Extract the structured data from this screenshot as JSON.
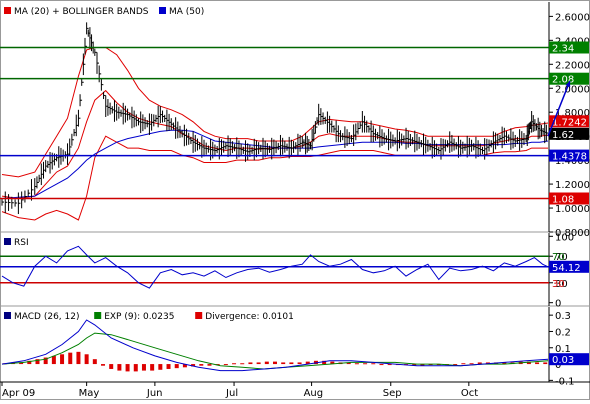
{
  "chart_data": [
    {
      "type": "line",
      "panel": "price",
      "legend": [
        {
          "label": "MA (20) + BOLLINGER BANDS",
          "color": "#e00000"
        },
        {
          "label": "MA (50)",
          "color": "#0000cc"
        }
      ],
      "y_ticks": [
        "2.6000",
        "2.4000",
        "2.2000",
        "2.0000",
        "1.8000",
        "1.6000",
        "1.4000",
        "1.2000",
        "1.0000",
        "0.8000"
      ],
      "y_tick_values": [
        2.6,
        2.4,
        2.2,
        2.0,
        1.8,
        1.6,
        1.4,
        1.2,
        1.0,
        0.8
      ],
      "ylim": [
        0.8,
        2.72
      ],
      "x_months": [
        {
          "label": "Apr 09",
          "t": 0.0
        },
        {
          "label": "May",
          "t": 0.155
        },
        {
          "label": "Jun",
          "t": 0.28
        },
        {
          "label": "Jul",
          "t": 0.425
        },
        {
          "label": "Aug",
          "t": 0.567
        },
        {
          "label": "Sep",
          "t": 0.712
        },
        {
          "label": "Oct",
          "t": 0.855
        }
      ],
      "levels": [
        {
          "label": "2.34",
          "value": 2.34,
          "color": "#006600",
          "badge": "#008000"
        },
        {
          "label": "2.08",
          "value": 2.08,
          "color": "#006600",
          "badge": "#008000"
        },
        {
          "label": "1.4378",
          "value": 1.4378,
          "color": "#0000cc",
          "badge": "#0000cc"
        },
        {
          "label": "1.08",
          "value": 1.08,
          "color": "#cc0000",
          "badge": "#dd0000"
        }
      ],
      "value_badges": [
        {
          "label": "1.7242",
          "value": 1.7242,
          "color": "#dd0000"
        },
        {
          "label": "1.62",
          "value": 1.62,
          "color": "#000000"
        }
      ],
      "arrow": {
        "from": [
          1.0,
          1.6
        ],
        "to": [
          1.04,
          2.06
        ],
        "color": "#0000cc"
      },
      "price_t": [
        0.0,
        0.03,
        0.06,
        0.08,
        0.1,
        0.12,
        0.14,
        0.155,
        0.17,
        0.19,
        0.21,
        0.23,
        0.25,
        0.27,
        0.29,
        0.31,
        0.33,
        0.35,
        0.37,
        0.39,
        0.41,
        0.43,
        0.45,
        0.47,
        0.49,
        0.51,
        0.53,
        0.55,
        0.565,
        0.58,
        0.6,
        0.62,
        0.64,
        0.66,
        0.68,
        0.7,
        0.72,
        0.74,
        0.76,
        0.78,
        0.8,
        0.82,
        0.84,
        0.86,
        0.88,
        0.9,
        0.92,
        0.94,
        0.96,
        0.97,
        0.985,
        1.0
      ],
      "price_close": [
        1.05,
        1.04,
        1.18,
        1.35,
        1.42,
        1.45,
        1.75,
        2.5,
        2.3,
        1.85,
        1.8,
        1.78,
        1.72,
        1.7,
        1.78,
        1.7,
        1.62,
        1.55,
        1.5,
        1.48,
        1.52,
        1.5,
        1.47,
        1.5,
        1.49,
        1.52,
        1.5,
        1.55,
        1.52,
        1.78,
        1.7,
        1.6,
        1.58,
        1.72,
        1.62,
        1.58,
        1.56,
        1.58,
        1.55,
        1.52,
        1.48,
        1.55,
        1.5,
        1.52,
        1.48,
        1.55,
        1.6,
        1.56,
        1.58,
        1.72,
        1.65,
        1.62
      ],
      "ma20_values": [
        1.1,
        1.08,
        1.1,
        1.2,
        1.3,
        1.35,
        1.5,
        1.72,
        1.9,
        1.98,
        1.88,
        1.8,
        1.75,
        1.72,
        1.7,
        1.68,
        1.62,
        1.58,
        1.52,
        1.5,
        1.48,
        1.5,
        1.5,
        1.49,
        1.5,
        1.5,
        1.5,
        1.52,
        1.55,
        1.6,
        1.62,
        1.6,
        1.6,
        1.6,
        1.6,
        1.58,
        1.56,
        1.55,
        1.55,
        1.52,
        1.52,
        1.52,
        1.52,
        1.52,
        1.52,
        1.54,
        1.56,
        1.58,
        1.58,
        1.6,
        1.6,
        1.61
      ],
      "bb_upper": [
        1.28,
        1.26,
        1.3,
        1.45,
        1.6,
        1.75,
        2.1,
        2.32,
        2.34,
        2.34,
        2.28,
        2.15,
        2.0,
        1.9,
        1.85,
        1.82,
        1.78,
        1.72,
        1.64,
        1.6,
        1.58,
        1.58,
        1.58,
        1.56,
        1.56,
        1.56,
        1.56,
        1.6,
        1.66,
        1.72,
        1.74,
        1.73,
        1.72,
        1.72,
        1.7,
        1.68,
        1.66,
        1.65,
        1.63,
        1.6,
        1.6,
        1.6,
        1.6,
        1.6,
        1.6,
        1.6,
        1.64,
        1.67,
        1.68,
        1.69,
        1.7,
        1.71
      ],
      "bb_lower": [
        0.97,
        0.92,
        0.9,
        0.95,
        0.98,
        0.95,
        0.9,
        1.1,
        1.42,
        1.6,
        1.55,
        1.5,
        1.5,
        1.48,
        1.48,
        1.48,
        1.44,
        1.42,
        1.38,
        1.38,
        1.38,
        1.4,
        1.4,
        1.4,
        1.42,
        1.42,
        1.43,
        1.43,
        1.43,
        1.44,
        1.46,
        1.48,
        1.48,
        1.48,
        1.48,
        1.46,
        1.44,
        1.44,
        1.44,
        1.44,
        1.44,
        1.44,
        1.44,
        1.44,
        1.44,
        1.46,
        1.47,
        1.47,
        1.48,
        1.5,
        1.5,
        1.5
      ],
      "ma50_values": [
        1.08,
        1.09,
        1.1,
        1.15,
        1.2,
        1.25,
        1.33,
        1.4,
        1.45,
        1.5,
        1.55,
        1.58,
        1.6,
        1.62,
        1.64,
        1.65,
        1.65,
        1.64,
        1.6,
        1.56,
        1.55,
        1.54,
        1.53,
        1.52,
        1.51,
        1.5,
        1.5,
        1.5,
        1.5,
        1.51,
        1.52,
        1.53,
        1.54,
        1.55,
        1.55,
        1.55,
        1.55,
        1.54,
        1.54,
        1.53,
        1.53,
        1.53,
        1.53,
        1.53,
        1.53,
        1.53,
        1.53,
        1.54,
        1.54,
        1.55,
        1.55,
        1.56
      ]
    },
    {
      "type": "line",
      "panel": "rsi",
      "legend": [
        {
          "label": "RSI",
          "color": "#000080"
        }
      ],
      "y_ticks": [
        "100",
        "70",
        "30",
        "0"
      ],
      "y_tick_values": [
        100,
        70,
        30,
        0
      ],
      "ylim": [
        -5,
        105
      ],
      "levels": [
        {
          "label": "70",
          "value": 70,
          "color": "#006600"
        },
        {
          "label": "30",
          "value": 30,
          "color": "#cc0000"
        },
        {
          "label": "54.12",
          "value": 54.12,
          "color": "#0000cc",
          "badge": "#0000cc"
        }
      ],
      "rsi_t": [
        0.0,
        0.02,
        0.04,
        0.06,
        0.08,
        0.1,
        0.12,
        0.14,
        0.155,
        0.17,
        0.19,
        0.21,
        0.23,
        0.25,
        0.27,
        0.29,
        0.31,
        0.33,
        0.35,
        0.37,
        0.39,
        0.41,
        0.43,
        0.45,
        0.47,
        0.49,
        0.51,
        0.53,
        0.55,
        0.565,
        0.58,
        0.6,
        0.62,
        0.64,
        0.66,
        0.68,
        0.7,
        0.72,
        0.74,
        0.76,
        0.78,
        0.8,
        0.82,
        0.84,
        0.86,
        0.88,
        0.9,
        0.92,
        0.94,
        0.96,
        0.975,
        0.99,
        1.0
      ],
      "rsi_values": [
        40,
        30,
        25,
        55,
        70,
        60,
        78,
        85,
        72,
        60,
        68,
        55,
        45,
        30,
        22,
        45,
        50,
        42,
        45,
        40,
        48,
        38,
        45,
        50,
        52,
        46,
        50,
        55,
        58,
        72,
        62,
        55,
        58,
        65,
        50,
        45,
        48,
        55,
        40,
        50,
        58,
        35,
        52,
        48,
        50,
        55,
        48,
        60,
        55,
        62,
        68,
        58,
        54
      ]
    },
    {
      "type": "bar",
      "panel": "macd",
      "legend": [
        {
          "label": "MACD (26, 12)",
          "color": "#000080"
        },
        {
          "label": "EXP (9): 0.0235",
          "color": "#008000"
        },
        {
          "label": "Divergence: 0.0101",
          "color": "#dd0000"
        }
      ],
      "y_ticks": [
        "0.3",
        "0.2",
        "0.1",
        "0",
        "-0.1"
      ],
      "y_tick_values": [
        0.3,
        0.2,
        0.1,
        0.0,
        -0.1
      ],
      "ylim": [
        -0.11,
        0.35
      ],
      "levels": [
        {
          "label": "0.03",
          "value": 0.03,
          "color": "#0000cc",
          "badge": "#0000cc"
        }
      ],
      "macd_t": [
        0.0,
        0.04,
        0.08,
        0.11,
        0.14,
        0.155,
        0.17,
        0.2,
        0.24,
        0.28,
        0.32,
        0.36,
        0.4,
        0.44,
        0.48,
        0.52,
        0.56,
        0.6,
        0.64,
        0.68,
        0.72,
        0.76,
        0.8,
        0.84,
        0.88,
        0.92,
        0.96,
        1.0
      ],
      "macd_values": [
        0.0,
        0.02,
        0.06,
        0.12,
        0.2,
        0.27,
        0.24,
        0.16,
        0.1,
        0.05,
        0.01,
        -0.02,
        -0.04,
        -0.04,
        -0.03,
        -0.02,
        0.0,
        0.02,
        0.02,
        0.01,
        0.0,
        -0.01,
        -0.01,
        -0.01,
        0.0,
        0.01,
        0.02,
        0.03
      ],
      "exp_values": [
        0.0,
        0.01,
        0.03,
        0.07,
        0.12,
        0.16,
        0.19,
        0.18,
        0.14,
        0.1,
        0.06,
        0.02,
        -0.01,
        -0.02,
        -0.03,
        -0.02,
        -0.01,
        0.0,
        0.01,
        0.01,
        0.01,
        0.0,
        0.0,
        -0.01,
        0.0,
        0.0,
        0.01,
        0.02
      ],
      "divergence_t": [
        0.005,
        0.02,
        0.035,
        0.05,
        0.065,
        0.08,
        0.095,
        0.11,
        0.125,
        0.14,
        0.155,
        0.17,
        0.185,
        0.2,
        0.215,
        0.23,
        0.245,
        0.26,
        0.275,
        0.29,
        0.305,
        0.32,
        0.335,
        0.35,
        0.365,
        0.38,
        0.395,
        0.41,
        0.425,
        0.44,
        0.455,
        0.47,
        0.485,
        0.5,
        0.515,
        0.53,
        0.545,
        0.56,
        0.575,
        0.59,
        0.605,
        0.62,
        0.635,
        0.65,
        0.665,
        0.68,
        0.695,
        0.71,
        0.725,
        0.74,
        0.755,
        0.77,
        0.785,
        0.8,
        0.815,
        0.83,
        0.845,
        0.86,
        0.875,
        0.89,
        0.905,
        0.92,
        0.935,
        0.95,
        0.965,
        0.98,
        0.995
      ],
      "divergence_values": [
        0.005,
        0.01,
        0.01,
        0.02,
        0.03,
        0.04,
        0.05,
        0.06,
        0.07,
        0.075,
        0.06,
        0.03,
        -0.01,
        -0.03,
        -0.04,
        -0.045,
        -0.045,
        -0.04,
        -0.04,
        -0.035,
        -0.03,
        -0.025,
        -0.02,
        -0.015,
        -0.01,
        -0.01,
        -0.005,
        0.0,
        0.005,
        0.005,
        0.01,
        0.01,
        0.015,
        0.015,
        0.01,
        0.01,
        0.01,
        0.015,
        0.02,
        0.02,
        0.015,
        0.01,
        0.01,
        0.005,
        0.005,
        0.005,
        0.0,
        0.0,
        -0.005,
        -0.005,
        -0.01,
        -0.01,
        -0.005,
        -0.005,
        0.0,
        0.0,
        0.005,
        0.005,
        0.01,
        0.01,
        0.01,
        0.01,
        0.01,
        0.015,
        0.015,
        0.01,
        0.01
      ]
    }
  ]
}
